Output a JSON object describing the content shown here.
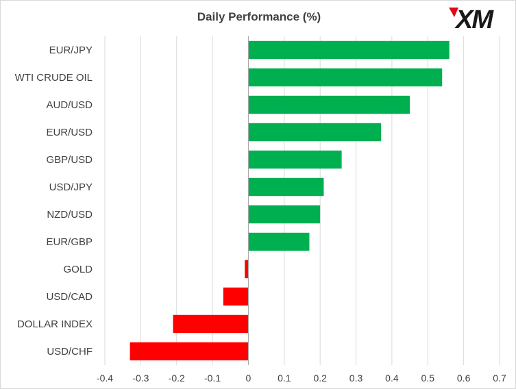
{
  "brand": {
    "logo_text": "XM",
    "accent_color": "#e30613",
    "text_color": "#1a1a1a"
  },
  "chart_data": {
    "type": "bar",
    "orientation": "horizontal",
    "title": "Daily Performance (%)",
    "xlabel": "",
    "ylabel": "",
    "categories": [
      "EUR/JPY",
      "WTI CRUDE OIL",
      "AUD/USD",
      "EUR/USD",
      "GBP/USD",
      "USD/JPY",
      "NZD/USD",
      "EUR/GBP",
      "GOLD",
      "USD/CAD",
      "DOLLAR INDEX",
      "USD/CHF"
    ],
    "values": [
      0.56,
      0.54,
      0.45,
      0.37,
      0.26,
      0.21,
      0.2,
      0.17,
      -0.01,
      -0.07,
      -0.21,
      -0.33
    ],
    "xlim": [
      -0.4,
      0.7
    ],
    "xticks": [
      -0.4,
      -0.3,
      -0.2,
      -0.1,
      0,
      0.1,
      0.2,
      0.3,
      0.4,
      0.5,
      0.6,
      0.7
    ],
    "xtick_labels": [
      "-0.4",
      "-0.3",
      "-0.2",
      "-0.1",
      "0",
      "0.1",
      "0.2",
      "0.3",
      "0.4",
      "0.5",
      "0.6",
      "0.7"
    ],
    "grid": "vertical",
    "positive_color": "#00b050",
    "negative_color": "#ff0000",
    "gridline_color": "#d9d9d9",
    "axis_color": "#a6a6a6"
  }
}
